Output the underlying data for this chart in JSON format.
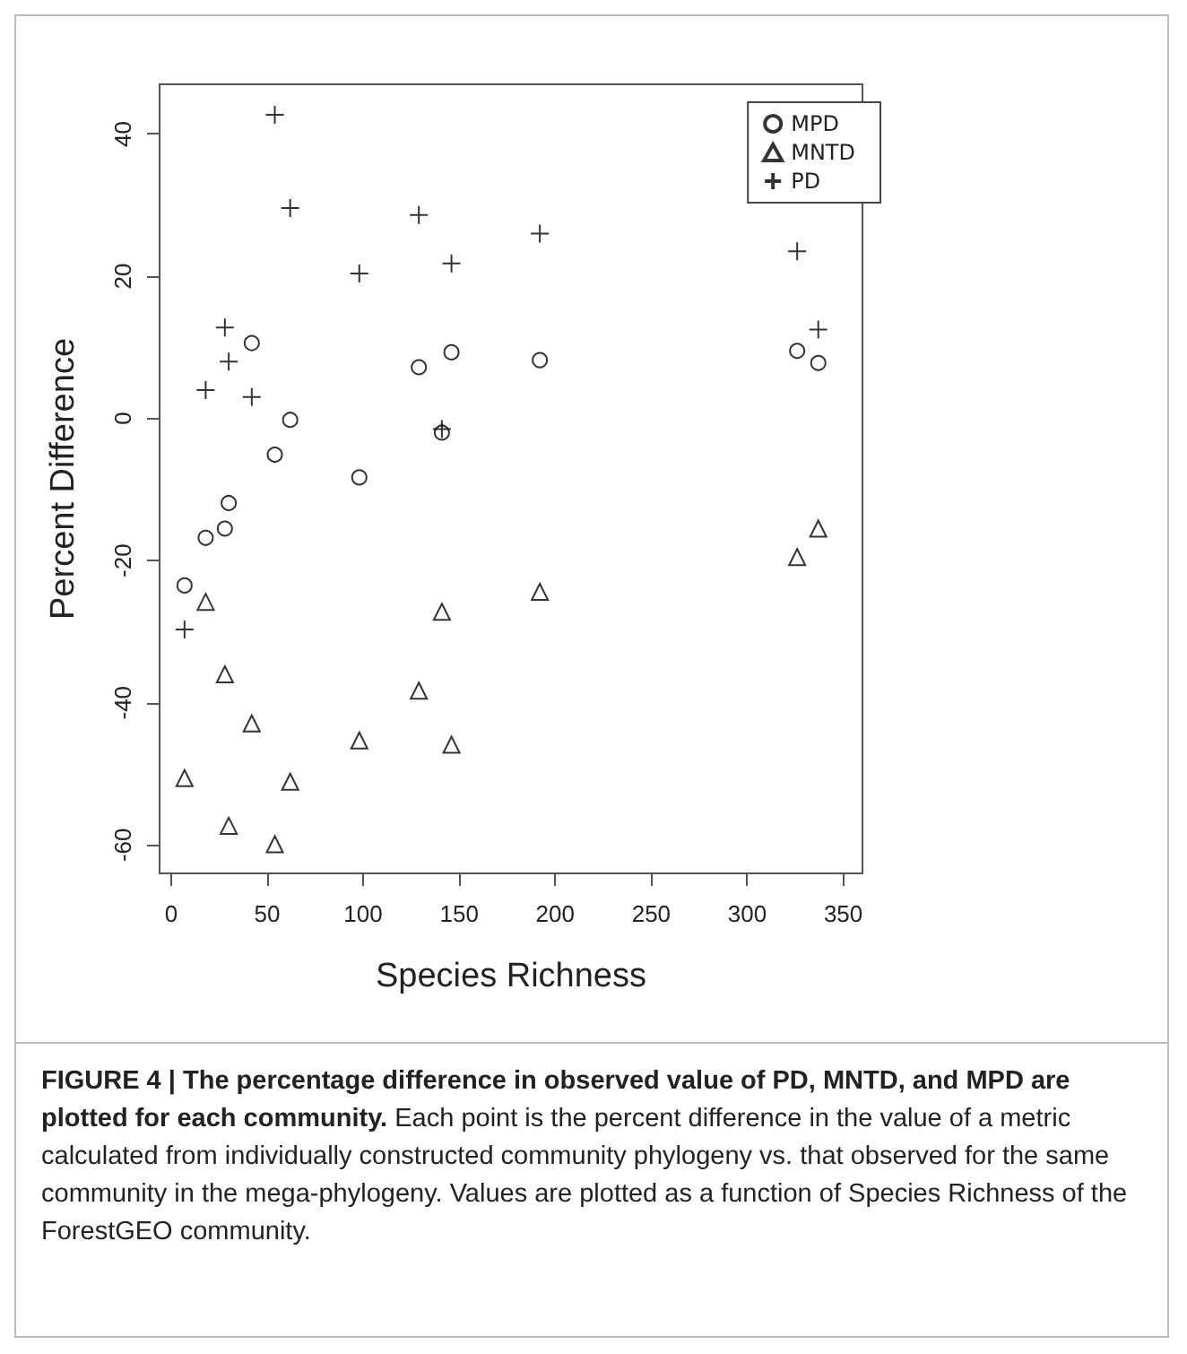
{
  "chart_data": {
    "type": "scatter",
    "title": "FIGURE 4 | The percentage difference in observed value of PD, MNTD, and MPD are plotted for each community.",
    "annotations": [
      "Each point is the percent difference in the value of a metric calculated from individually constructed community phylogeny vs. that observed for the same community in the mega-phylogeny. Values are plotted as a function of Species Richness of the ForestGEO community."
    ],
    "xlabel": "Species Richness",
    "ylabel": "Percent Difference",
    "series": [
      {
        "name": "MPD",
        "color": "#000000",
        "marker": "circle",
        "x": [
          7,
          18,
          28,
          30,
          42,
          54,
          62,
          98,
          129,
          141,
          146,
          192,
          326,
          337
        ],
        "values": [
          -23.5,
          -16.8,
          -15.5,
          -11.9,
          10.6,
          -5.1,
          -0.2,
          -8.3,
          7.2,
          -2,
          9.3,
          8.2,
          9.5,
          7.8
        ]
      },
      {
        "name": "MNTD",
        "color": "#000000",
        "marker": "triangle",
        "x": [
          7,
          18,
          28,
          30,
          42,
          54,
          62,
          98,
          129,
          141,
          146,
          192,
          326,
          337
        ],
        "values": [
          -50.6,
          -25.8,
          -36,
          -57.3,
          -42.9,
          -59.9,
          -51.1,
          -45.3,
          -38.3,
          -27.2,
          -45.9,
          -24.4,
          -19.5,
          -15.5
        ]
      },
      {
        "name": "PD",
        "color": "#000000",
        "marker": "cross",
        "x": [
          7,
          18,
          28,
          30,
          42,
          54,
          62,
          98,
          129,
          141,
          146,
          192,
          326,
          337
        ],
        "values": [
          -29.7,
          4,
          12.8,
          8,
          3,
          42.7,
          29.6,
          20.4,
          28.6,
          -1.5,
          21.8,
          26,
          23.5,
          12.5
        ]
      }
    ],
    "xlim": [
      -6,
      360
    ],
    "xticks": [
      0,
      50,
      100,
      150,
      200,
      250,
      300,
      350
    ],
    "ylim": [
      -64,
      47
    ],
    "yticks": [
      -60,
      -40,
      -20,
      0,
      20,
      40
    ],
    "legend": "top right",
    "grid": false
  }
}
